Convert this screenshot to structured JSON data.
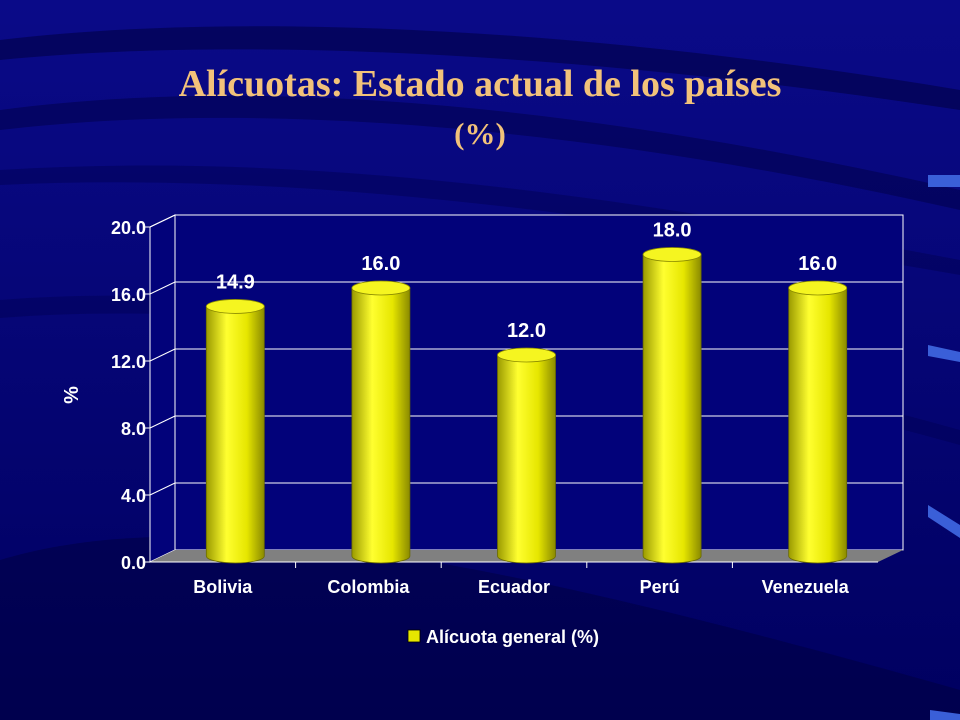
{
  "slide": {
    "title": "Alícuotas: Estado actual de los países",
    "subtitle": "(%)"
  },
  "colors": {
    "background": "#02027a",
    "title": "#f2c27a",
    "bar": "#e6e600",
    "plot_area": "#02027a",
    "floor": "#808080",
    "axis_text": "#ffffff"
  },
  "chart_data": {
    "type": "bar",
    "categories": [
      "Bolivia",
      "Colombia",
      "Ecuador",
      "Perú",
      "Venezuela"
    ],
    "series": [
      {
        "name": "Alícuota general (%)",
        "values": [
          14.9,
          16.0,
          12.0,
          18.0,
          16.0
        ]
      }
    ],
    "data_labels": [
      "14.9",
      "16.0",
      "12.0",
      "18.0",
      "16.0"
    ],
    "ylabel": "%",
    "xlabel": "",
    "ylim": [
      0,
      20
    ],
    "yticks": [
      "0.0",
      "4.0",
      "8.0",
      "12.0",
      "16.0",
      "20.0"
    ],
    "grid": true,
    "legend": "bottom",
    "style": "3d-cylinder"
  }
}
